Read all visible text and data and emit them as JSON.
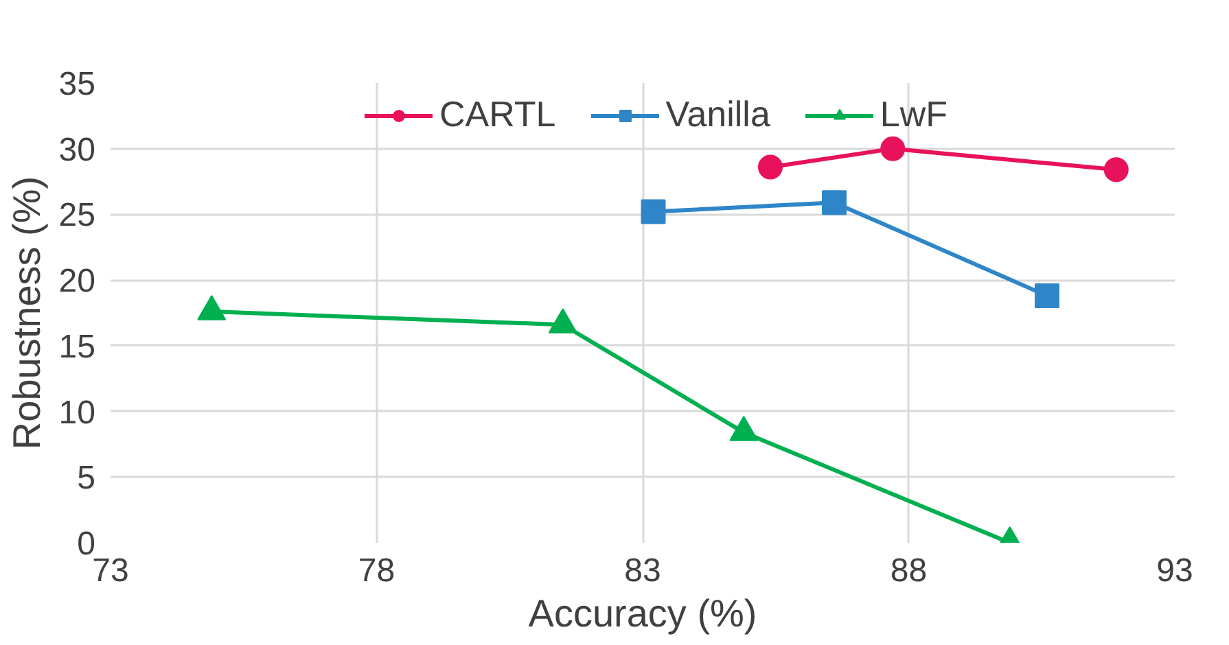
{
  "chart_data": {
    "type": "line",
    "xlabel": "Accuracy (%)",
    "ylabel": "Robustness (%)",
    "xlim": [
      73,
      93
    ],
    "xticks": [
      73,
      78,
      83,
      88,
      93
    ],
    "ylim": [
      0,
      35
    ],
    "yticks": [
      0,
      5,
      10,
      15,
      20,
      25,
      30,
      35
    ],
    "grid": true,
    "legend": "top",
    "line_style": "solid",
    "series": [
      {
        "name": "CARTL",
        "color": "#e8125c",
        "marker": "circle",
        "x": [
          85.4,
          87.7,
          91.9
        ],
        "values": [
          28.6,
          30.0,
          28.4
        ]
      },
      {
        "name": "Vanilla",
        "color": "#2e86c8",
        "marker": "square",
        "x": [
          83.2,
          86.6,
          90.6
        ],
        "values": [
          25.2,
          25.9,
          18.8
        ]
      },
      {
        "name": "LwF",
        "color": "#00b050",
        "marker": "triangle",
        "x": [
          74.9,
          81.5,
          84.9,
          89.9
        ],
        "values": [
          17.6,
          16.6,
          8.4,
          0
        ]
      }
    ]
  }
}
